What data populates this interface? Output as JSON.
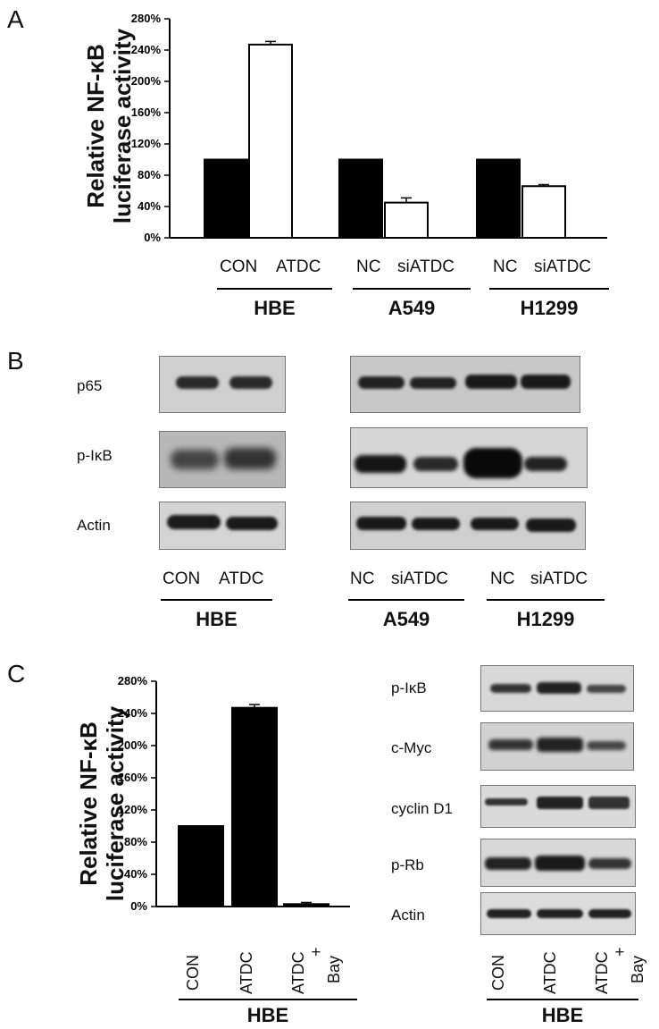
{
  "panels": {
    "a": {
      "letter": "A",
      "groups": [
        {
          "name": "HBE",
          "cats": [
            "CON",
            "ATDC"
          ]
        },
        {
          "name": "A549",
          "cats": [
            "NC",
            "siATDC"
          ]
        },
        {
          "name": "H1299",
          "cats": [
            "NC",
            "siATDC"
          ]
        }
      ]
    },
    "b": {
      "letter": "B",
      "rows": [
        "p65",
        "p-IκB",
        "Actin"
      ],
      "left_group": {
        "name": "HBE",
        "cats": [
          "CON",
          "ATDC"
        ]
      },
      "right_groups": [
        {
          "name": "A549",
          "cats": [
            "NC",
            "siATDC"
          ]
        },
        {
          "name": "H1299",
          "cats": [
            "NC",
            "siATDC"
          ]
        }
      ]
    },
    "c": {
      "letter": "C",
      "blot_rows": [
        "p-IκB",
        "c-Myc",
        "cyclin D1",
        "p-Rb",
        "Actin"
      ],
      "lanes": [
        "CON",
        "ATDC",
        "ATDC",
        "+",
        "Bay"
      ],
      "group": "HBE"
    }
  },
  "chart_data": [
    {
      "type": "bar",
      "ylabel": "Relative NF-κB luciferase activity",
      "ytick_labels": [
        "0%",
        "40%",
        "80%",
        "120%",
        "160%",
        "200%",
        "240%",
        "280%"
      ],
      "ylim": [
        0,
        280
      ],
      "categories": [
        "CON",
        "ATDC",
        "NC",
        "siATDC",
        "NC",
        "siATDC"
      ],
      "values": [
        100,
        247,
        100,
        45,
        100,
        66
      ],
      "errors": [
        0,
        4,
        0,
        6,
        0,
        2
      ],
      "colors": [
        "#000000",
        "#ffffff",
        "#000000",
        "#ffffff",
        "#000000",
        "#ffffff"
      ],
      "grid": false
    },
    {
      "type": "bar",
      "ylabel": "Relative NF-κB luciferase activity",
      "ytick_labels": [
        "0%",
        "40%",
        "80%",
        "120%",
        "160%",
        "200%",
        "240%",
        "280%"
      ],
      "ylim": [
        0,
        280
      ],
      "categories": [
        "CON",
        "ATDC",
        "ATDC + Bay"
      ],
      "values": [
        100,
        247,
        3
      ],
      "errors": [
        0,
        4,
        2
      ],
      "colors": [
        "#000000",
        "#000000",
        "#000000"
      ],
      "grid": false
    }
  ]
}
